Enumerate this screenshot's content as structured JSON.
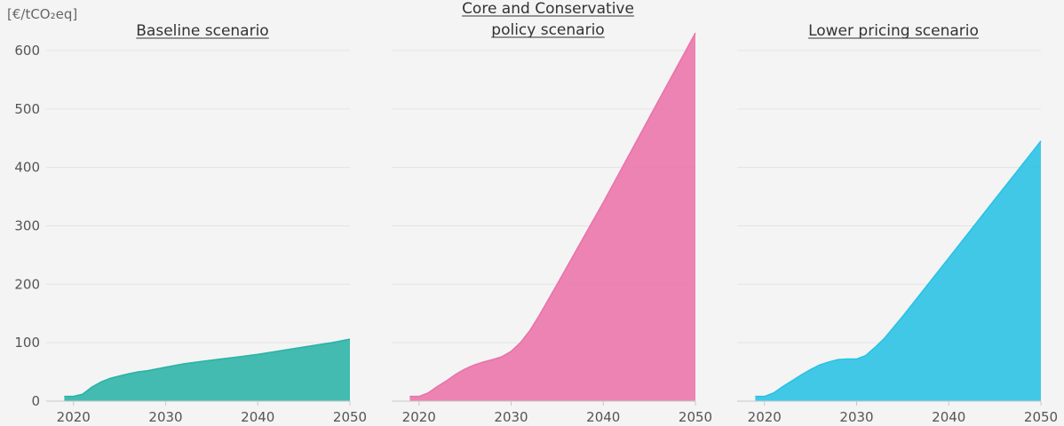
{
  "unit_label": "[€/tCO₂eq]",
  "chart_data": [
    {
      "type": "area",
      "title": "Baseline scenario",
      "color": "#2bb3a6",
      "xlim": [
        2018,
        2050
      ],
      "ylim": [
        0,
        650
      ],
      "xticks": [
        2020,
        2030,
        2040,
        2050
      ],
      "yticks": [
        0,
        100,
        200,
        300,
        400,
        500,
        600
      ],
      "x": [
        2019,
        2020,
        2021,
        2022,
        2023,
        2024,
        2025,
        2026,
        2027,
        2028,
        2029,
        2030,
        2032,
        2034,
        2036,
        2038,
        2040,
        2042,
        2044,
        2046,
        2048,
        2050
      ],
      "y": [
        8,
        8,
        12,
        24,
        33,
        39,
        43,
        47,
        50,
        52,
        55,
        58,
        64,
        68,
        72,
        76,
        80,
        85,
        90,
        95,
        100,
        106
      ]
    },
    {
      "type": "area",
      "title": "Core and Conservative policy scenario",
      "title_lines": [
        "Core and Conservative",
        "policy scenario"
      ],
      "color": "#ea73aa",
      "xlim": [
        2018,
        2050
      ],
      "ylim": [
        0,
        650
      ],
      "xticks": [
        2020,
        2030,
        2040,
        2050
      ],
      "yticks": [
        0,
        100,
        200,
        300,
        400,
        500,
        600
      ],
      "x": [
        2019,
        2020,
        2021,
        2022,
        2023,
        2024,
        2025,
        2026,
        2027,
        2028,
        2029,
        2030,
        2031,
        2032,
        2033,
        2035,
        2040,
        2045,
        2050
      ],
      "y": [
        8,
        8,
        14,
        25,
        35,
        46,
        55,
        62,
        67,
        71,
        76,
        85,
        100,
        120,
        145,
        200,
        340,
        485,
        630
      ]
    },
    {
      "type": "area",
      "title": "Lower pricing scenario",
      "color": "#29c2e5",
      "xlim": [
        2018,
        2050
      ],
      "ylim": [
        0,
        650
      ],
      "xticks": [
        2020,
        2030,
        2040,
        2050
      ],
      "yticks": [
        0,
        100,
        200,
        300,
        400,
        500,
        600
      ],
      "x": [
        2019,
        2020,
        2021,
        2022,
        2023,
        2024,
        2025,
        2026,
        2027,
        2028,
        2029,
        2030,
        2031,
        2032,
        2033,
        2035,
        2040,
        2045,
        2050
      ],
      "y": [
        8,
        8,
        14,
        25,
        35,
        45,
        54,
        62,
        67,
        71,
        72,
        72,
        78,
        92,
        107,
        145,
        245,
        345,
        445
      ]
    }
  ]
}
